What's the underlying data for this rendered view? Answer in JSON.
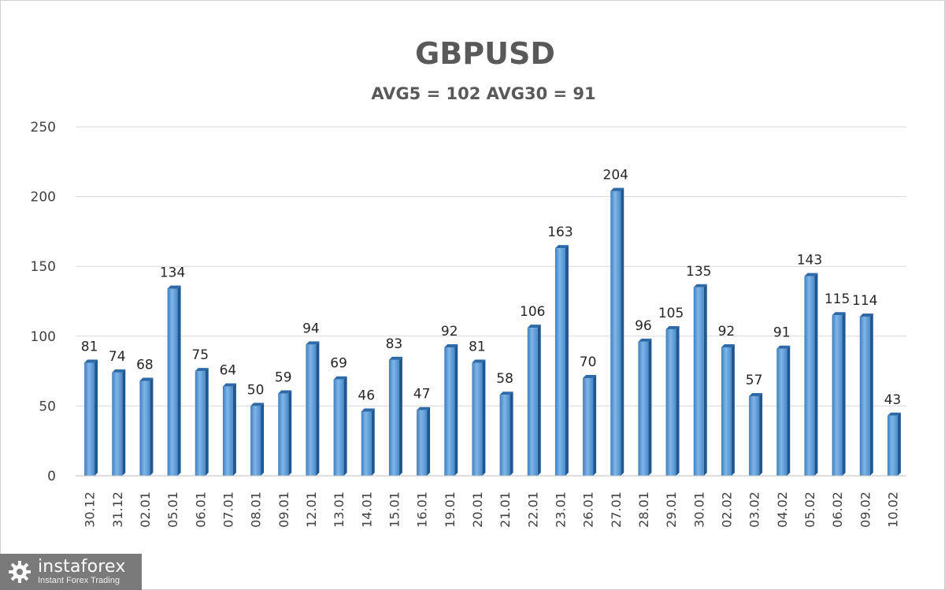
{
  "chart_data": {
    "type": "bar",
    "title": "GBPUSD",
    "subtitle": "AVG5 = 102 AVG30 = 91",
    "categories": [
      "30.12",
      "31.12",
      "02.01",
      "05.01",
      "06.01",
      "07.01",
      "08.01",
      "09.01",
      "12.01",
      "13.01",
      "14.01",
      "15.01",
      "16.01",
      "19.01",
      "20.01",
      "21.01",
      "22.01",
      "23.01",
      "26.01",
      "27.01",
      "28.01",
      "29.01",
      "30.01",
      "02.02",
      "03.02",
      "04.02",
      "05.02",
      "06.02",
      "09.02",
      "10.02"
    ],
    "values": [
      81,
      74,
      68,
      134,
      75,
      64,
      50,
      59,
      94,
      69,
      46,
      83,
      47,
      92,
      81,
      58,
      106,
      163,
      70,
      204,
      96,
      105,
      135,
      92,
      57,
      91,
      143,
      115,
      114,
      43
    ],
    "ylim": [
      0,
      250
    ],
    "yticks": [
      0,
      50,
      100,
      150,
      200,
      250
    ],
    "xlabel": "",
    "ylabel": "",
    "grid": true,
    "legend": "none",
    "bar_color": "#5b9bd5",
    "data_labels": true
  },
  "branding": {
    "brand": "instaforex",
    "tagline": "Instant Forex Trading",
    "icon": "gear-icon"
  }
}
